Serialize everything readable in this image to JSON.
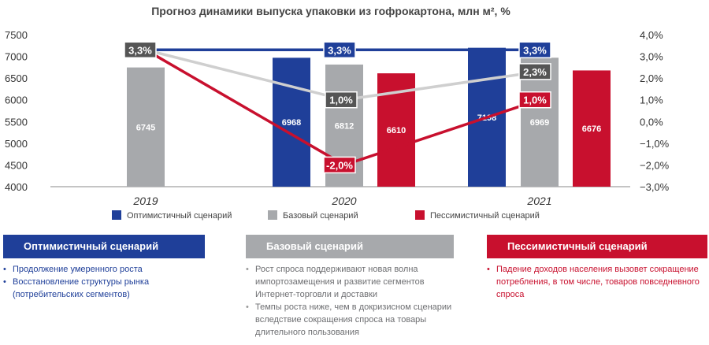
{
  "colors": {
    "optimistic": "#1f3f99",
    "base": "#a7a9ac",
    "pessimistic": "#c8102e",
    "line_base": "#cfcfcf",
    "label_dark": "#555555"
  },
  "chart_data": {
    "type": "bar",
    "title": "Прогноз динамики выпуска упаковки из гофрокартона, млн м², %",
    "categories": [
      "2019",
      "2020",
      "2021"
    ],
    "ylim": [
      4000,
      7500
    ],
    "y_ticks": [
      "7500",
      "7000",
      "6500",
      "6000",
      "5500",
      "5000",
      "4500",
      "4000"
    ],
    "y2lim": [
      -3,
      4
    ],
    "y2_ticks": [
      "4,0%",
      "3,0%",
      "2,0%",
      "1,0%",
      "0,0%",
      "−1,0%",
      "−2,0%",
      "−3,0%"
    ],
    "series": [
      {
        "name": "Оптимистичный сценарий",
        "color": "#1f3f99",
        "values": [
          null,
          6968,
          7198
        ],
        "labels": [
          "",
          "6968",
          "7198"
        ],
        "growth": [
          3.3,
          3.3,
          3.3
        ],
        "growth_labels": [
          "",
          "3,3%",
          "3,3%"
        ]
      },
      {
        "name": "Базовый сценарий",
        "color": "#a7a9ac",
        "values": [
          6745,
          6812,
          6969
        ],
        "labels": [
          "6745",
          "6812",
          "6969"
        ],
        "growth": [
          3.3,
          1.0,
          2.3
        ],
        "growth_labels": [
          "3,3%",
          "1,0%",
          "2,3%"
        ]
      },
      {
        "name": "Пессимистичный сценарий",
        "color": "#c8102e",
        "values": [
          null,
          6610,
          6676
        ],
        "labels": [
          "",
          "6610",
          "6676"
        ],
        "growth": [
          3.3,
          -2.0,
          1.0
        ],
        "growth_labels": [
          "",
          "-2,0%",
          "1,0%"
        ]
      }
    ],
    "legend_position": "bottom"
  },
  "scenarios": {
    "optimistic": {
      "title": "Оптимистичный сценарий",
      "bullets": [
        "Продолжение умеренного роста",
        "Восстановление структуры рынка (потребительских сегментов)"
      ]
    },
    "base": {
      "title": "Базовый сценарий",
      "bullets": [
        "Рост спроса поддерживают новая волна импортозамещения и развитие сегментов Интернет-торговли и доставки",
        "Темпы роста ниже, чем в докризисном сценарии вследствие сокращения спроса на товары длительного пользования"
      ]
    },
    "pessimistic": {
      "title": "Пессимистичный сценарий",
      "bullets": [
        "Падение доходов населения вызовет сокращение потребления, в том числе, товаров повседневного спроса"
      ]
    }
  }
}
